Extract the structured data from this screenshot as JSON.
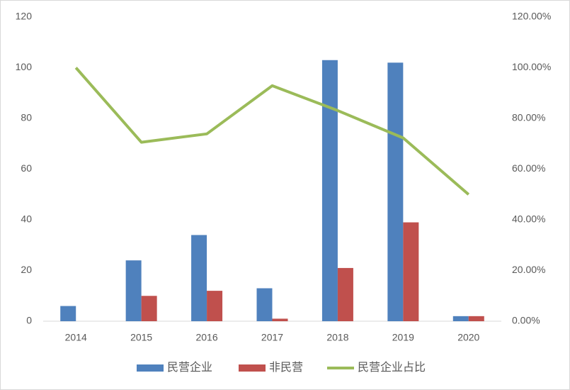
{
  "chart_data": {
    "type": "bar",
    "categories": [
      "2014",
      "2015",
      "2016",
      "2017",
      "2018",
      "2019",
      "2020"
    ],
    "series": [
      {
        "name": "民营企业",
        "color": "#4f81bd",
        "values": [
          6,
          24,
          34,
          13,
          103,
          102,
          2
        ]
      },
      {
        "name": "非民营",
        "color": "#c0504d",
        "values": [
          0,
          10,
          12,
          1,
          21,
          39,
          2
        ]
      },
      {
        "name": "民营企业占比",
        "color": "#9bbb59",
        "type": "line",
        "axis": "y2",
        "values": [
          100,
          70.6,
          73.9,
          92.9,
          83.1,
          72.3,
          50
        ]
      }
    ],
    "ylim": [
      0,
      120
    ],
    "yticks": [
      0,
      20,
      40,
      60,
      80,
      100,
      120
    ],
    "y2lim": [
      0,
      120
    ],
    "y2ticks": [
      {
        "value": 0,
        "label": "0.00%"
      },
      {
        "value": 20,
        "label": "20.00%"
      },
      {
        "value": 40,
        "label": "40.00%"
      },
      {
        "value": 60,
        "label": "60.00%"
      },
      {
        "value": 80,
        "label": "80.00%"
      },
      {
        "value": 100,
        "label": "100.00%"
      },
      {
        "value": 120,
        "label": "120.00%"
      }
    ],
    "grid": false,
    "legend": "bottom"
  }
}
